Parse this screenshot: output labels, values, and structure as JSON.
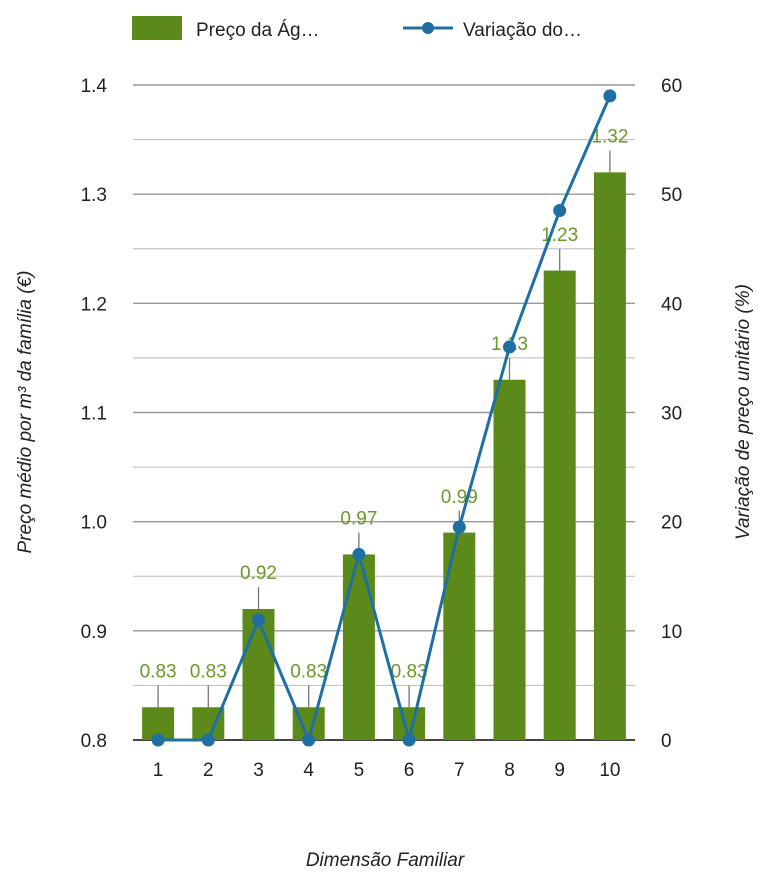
{
  "chart_data": {
    "type": "bar",
    "categories": [
      "1",
      "2",
      "3",
      "4",
      "5",
      "6",
      "7",
      "8",
      "9",
      "10"
    ],
    "series": [
      {
        "name": "Preço da Ág…",
        "type": "bar",
        "axis": "left",
        "color": "#5b8a1a",
        "values": [
          0.83,
          0.83,
          0.92,
          0.83,
          0.97,
          0.83,
          0.99,
          1.13,
          1.23,
          1.32
        ],
        "labels": [
          "0.83",
          "0.83",
          "0.92",
          "0.83",
          "0.97",
          "0.83",
          "0.99",
          "1.13",
          "1.23",
          "1.32"
        ],
        "error_upper": [
          0.85,
          0.85,
          0.94,
          0.85,
          0.99,
          0.85,
          1.01,
          1.15,
          1.25,
          1.34
        ]
      },
      {
        "name": "Variação do…",
        "type": "line",
        "axis": "right",
        "color": "#1f6fa3",
        "values": [
          0,
          0,
          11,
          0,
          17,
          0,
          19.5,
          36,
          48.5,
          59
        ]
      }
    ],
    "xlabel": "Dimensão Familiar",
    "ylabel": "Preço médio por m³ da família (€)",
    "y2label": "Variação de preço unitário (%)",
    "ylim": [
      0.8,
      1.4
    ],
    "y2lim": [
      0,
      60
    ],
    "yticks": [
      "0.8",
      "0.9",
      "1.0",
      "1.1",
      "1.2",
      "1.3",
      "1.4"
    ],
    "y2ticks": [
      "0",
      "10",
      "20",
      "30",
      "40",
      "50",
      "60"
    ],
    "legend_position": "top",
    "grid": true,
    "label_color": "#6a9a2a"
  }
}
